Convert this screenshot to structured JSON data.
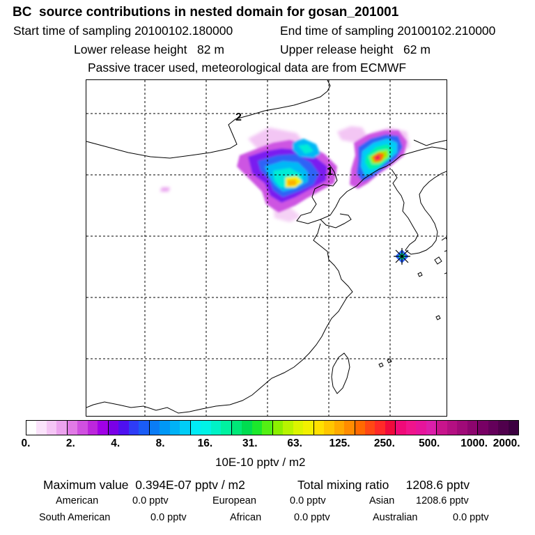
{
  "header": {
    "title": "BC  source contributions in nested domain for gosan_201001",
    "start_label": "Start time of sampling 20100102.180000",
    "end_label": "End time of sampling 20100102.210000",
    "lower_label": "Lower release height   82 m",
    "upper_label": "Upper release height   62 m",
    "tracer_note": "Passive tracer used, meteorological data are from ECMWF"
  },
  "map": {
    "track_labels": [
      "1",
      "2"
    ],
    "receptor_icon": "star-marker-icon",
    "grid": true
  },
  "colorbar": {
    "ticks": [
      "0.",
      "2.",
      "4.",
      "8.",
      "16.",
      "31.",
      "63.",
      "125.",
      "250.",
      "500.",
      "1000.",
      "2000."
    ],
    "colors": [
      "#ffffff",
      "#fbe3fb",
      "#f5c5f5",
      "#eca3ee",
      "#e17ae6",
      "#d050e0",
      "#bc26dc",
      "#a000e6",
      "#7a00e6",
      "#4e10f0",
      "#2e3cf6",
      "#1a5cf6",
      "#0a7cf6",
      "#0098f6",
      "#00b2f6",
      "#00cdf6",
      "#00ecf6",
      "#00f2e6",
      "#00f2c6",
      "#00f2a0",
      "#00e878",
      "#00dc50",
      "#1ce82c",
      "#54f014",
      "#8cf000",
      "#b8f400",
      "#dcf400",
      "#f2f000",
      "#ffe000",
      "#ffc600",
      "#ffaa00",
      "#ff8c00",
      "#ff6a00",
      "#ff4814",
      "#ff2a28",
      "#f00a3c",
      "#f00a78",
      "#f0148c",
      "#e6149b",
      "#dc1eaa",
      "#c8148c",
      "#b40f82",
      "#a00a78",
      "#8c056e",
      "#780064",
      "#64005a",
      "#50004c",
      "#3c0040"
    ],
    "unit": "10E-10 pptv / m2"
  },
  "summary": {
    "max_value": "Maximum value  0.394E-07 pptv / m2",
    "total_mixing": "Total mixing ratio     1208.6 pptv",
    "american_label": "American",
    "american_value": "0.0 pptv",
    "european_label": "European",
    "european_value": "0.0 pptv",
    "asian_label": "Asian",
    "asian_value": "1208.6 pptv",
    "south_american_label": "South American",
    "south_american_value": "0.0 pptv",
    "african_label": "African",
    "african_value": "0.0 pptv",
    "australian_label": "Australian",
    "australian_value": "0.0 pptv"
  }
}
